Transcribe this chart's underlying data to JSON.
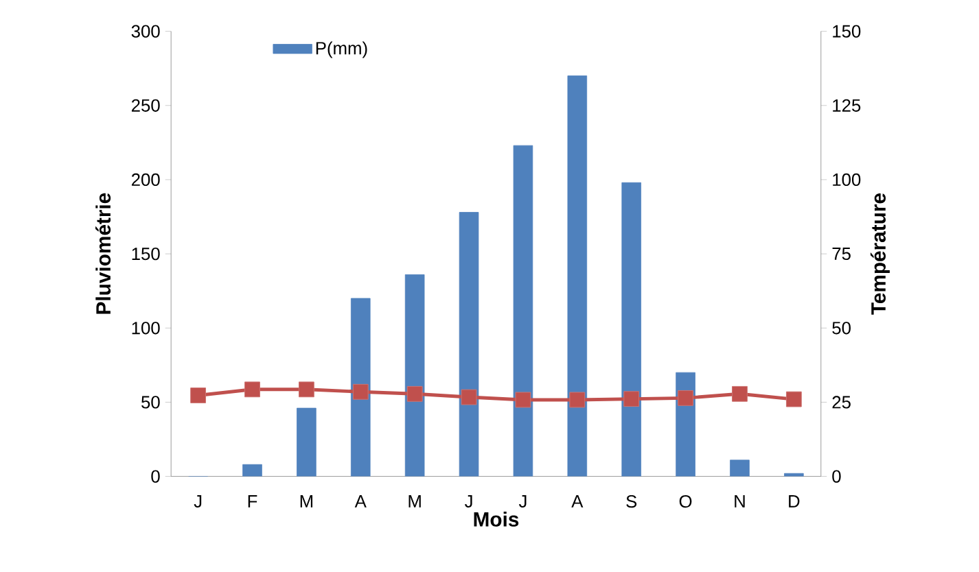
{
  "chart_data": {
    "type": "bar",
    "xlabel": "Mois",
    "ylabel": "Pluviométrie",
    "y2label": "Température",
    "categories": [
      "J",
      "F",
      "M",
      "A",
      "M",
      "J",
      "J",
      "A",
      "S",
      "O",
      "N",
      "D"
    ],
    "series": [
      {
        "name": "P(mm)",
        "color": "#4f81bd",
        "values": [
          0,
          8,
          46,
          120,
          136,
          178,
          223,
          270,
          198,
          70,
          11,
          2
        ]
      },
      {
        "type": "line",
        "axis": "y2",
        "color": "#c0504d",
        "marker": "square",
        "values": [
          27.3,
          29.3,
          29.3,
          28.5,
          27.8,
          26.7,
          25.8,
          25.8,
          26.1,
          26.4,
          27.8,
          26.0
        ]
      }
    ],
    "ylim": [
      0,
      300
    ],
    "yticks": [
      0,
      50,
      100,
      150,
      200,
      250,
      300
    ],
    "y2lim": [
      0,
      150
    ],
    "y2ticks": [
      0,
      25,
      50,
      75,
      100,
      125,
      150
    ],
    "legend": "top left",
    "grid": false
  }
}
